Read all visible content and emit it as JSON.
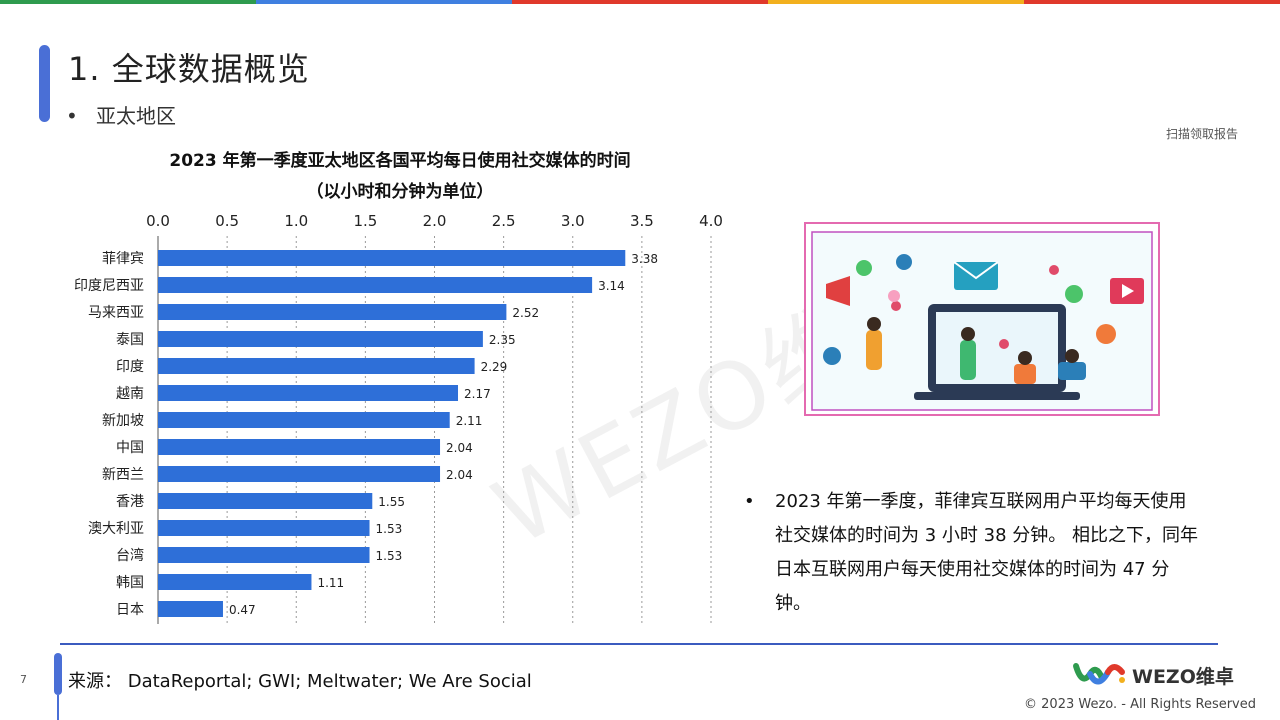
{
  "colors": {
    "bar": "#2e6fd8",
    "accent": "#4a6fd6",
    "topbar": [
      "#2e9b4e",
      "#3f7fe0",
      "#e0392b",
      "#f2b01e",
      "#e0392b"
    ]
  },
  "header": {
    "title": "1. 全球数据概览",
    "bullet": "亚太地区",
    "scan_label": "扫描领取报告"
  },
  "chart_title": [
    "2023 年第一季度亚太地区各国平均每日使用社交媒体的时间",
    "（以小时和分钟为单位）"
  ],
  "chart_data": {
    "type": "bar",
    "orientation": "horizontal",
    "title": "2023 年第一季度亚太地区各国平均每日使用社交媒体的时间（以小时和分钟为单位）",
    "categories": [
      "菲律宾",
      "印度尼西亚",
      "马来西亚",
      "泰国",
      "印度",
      "越南",
      "新加坡",
      "中国",
      "新西兰",
      "香港",
      "澳大利亚",
      "台湾",
      "韩国",
      "日本"
    ],
    "values": [
      3.38,
      3.14,
      2.52,
      2.35,
      2.29,
      2.17,
      2.11,
      2.04,
      2.04,
      1.55,
      1.53,
      1.53,
      1.11,
      0.47
    ],
    "value_labels": [
      "3.38",
      "3.14",
      "2.52",
      "2.35",
      "2.29",
      "2.17",
      "2.11",
      "2.04",
      "2.04",
      "1.55",
      "1.53",
      "1.53",
      "1.11",
      "0.47"
    ],
    "xlim": [
      0,
      4.0
    ],
    "ticks": [
      "0.0",
      "0.5",
      "1.0",
      "1.5",
      "2.0",
      "2.5",
      "3.0",
      "3.5",
      "4.0"
    ],
    "tick_values": [
      0,
      0.5,
      1,
      1.5,
      2,
      2.5,
      3,
      3.5,
      4
    ],
    "grid": "dotted vertical",
    "axis_position": "top"
  },
  "watermark": "WEZO维卓",
  "bullet_text": "2023 年第一季度，菲律宾互联网用户平均每天使用社交媒体的时间为 3 小时 38 分钟。 相比之下，同年日本互联网用户每天使用社交媒体的时间为 47 分钟。",
  "footer": {
    "page": "7",
    "source": "来源：  DataReportal; GWI; Meltwater; We Are Social",
    "logo": "WEZO维卓",
    "copyright": "© 2023 Wezo. - All Rights Reserved"
  }
}
